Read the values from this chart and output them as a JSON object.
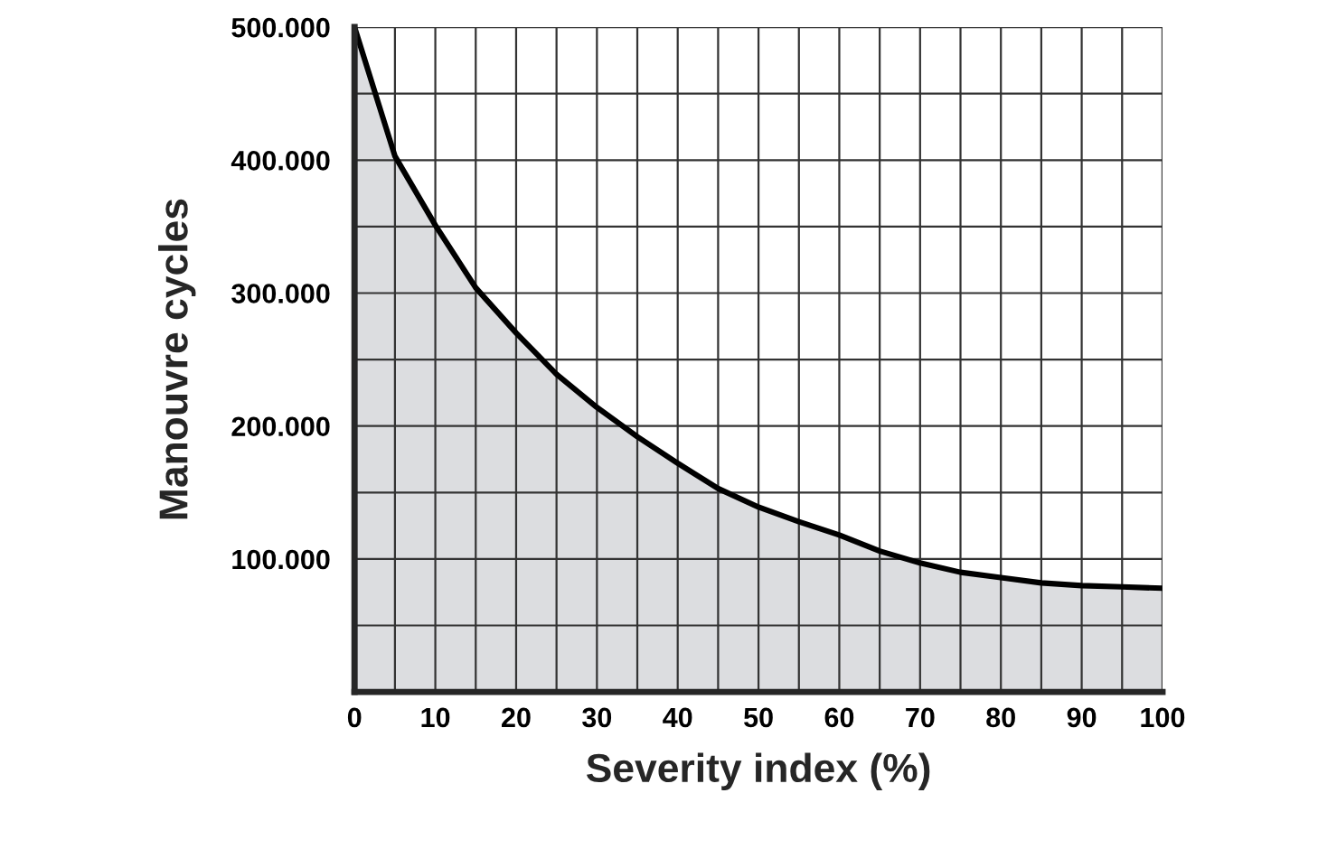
{
  "chart_data": {
    "type": "area",
    "xlabel": "Severity index (%)",
    "ylabel": "Manouvre cycles",
    "x": [
      0,
      5,
      10,
      15,
      20,
      25,
      30,
      35,
      40,
      45,
      50,
      55,
      60,
      65,
      70,
      75,
      80,
      85,
      90,
      95,
      100
    ],
    "series": [
      {
        "color": "#dcdde0",
        "values": [
          500000,
          403000,
          351000,
          304000,
          270000,
          239000,
          214000,
          192000,
          172000,
          153000,
          139000,
          128000,
          118000,
          106000,
          97000,
          90000,
          86000,
          82000,
          80000,
          79000,
          78000
        ]
      }
    ],
    "xlim": [
      0,
      100
    ],
    "ylim": [
      0,
      500000
    ],
    "xticks": [
      0,
      {
        "value": 5,
        "label": null
      },
      10,
      {
        "value": 15,
        "label": null
      },
      20,
      {
        "value": 25,
        "label": null
      },
      30,
      {
        "value": 35,
        "label": null
      },
      40,
      {
        "value": 45,
        "label": null
      },
      50,
      {
        "value": 55,
        "label": null
      },
      60,
      {
        "value": 65,
        "label": null
      },
      70,
      {
        "value": 75,
        "label": null
      },
      80,
      {
        "value": 85,
        "label": null
      },
      90,
      {
        "value": 95,
        "label": null
      },
      100
    ],
    "yticks": [
      {
        "value": 0,
        "label": null
      },
      {
        "value": 50000,
        "label": null
      },
      {
        "value": 100000,
        "label": "100.000"
      },
      {
        "value": 150000,
        "label": null
      },
      {
        "value": 200000,
        "label": "200.000"
      },
      {
        "value": 250000,
        "label": null
      },
      {
        "value": 300000,
        "label": "300.000"
      },
      {
        "value": 350000,
        "label": null
      },
      {
        "value": 400000,
        "label": "400.000"
      },
      {
        "value": 450000,
        "label": null
      },
      {
        "value": 500000,
        "label": "500.000"
      }
    ],
    "grid": true,
    "legend": false
  }
}
